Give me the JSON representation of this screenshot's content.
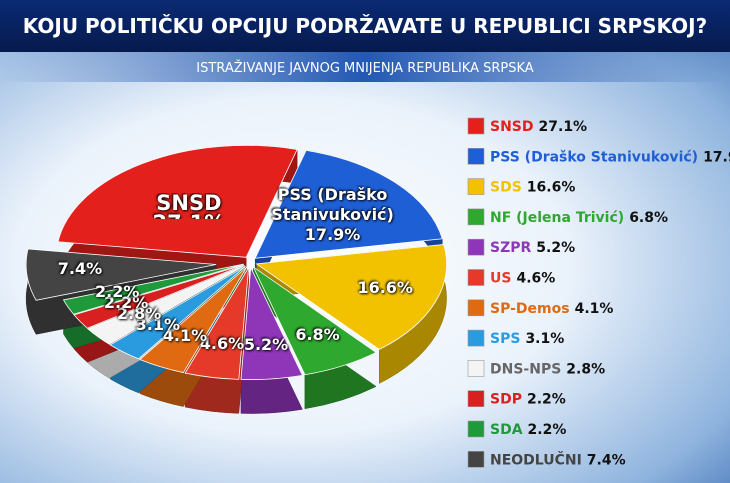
{
  "chart_data": {
    "type": "pie",
    "title": "KOJU POLITIČKU OPCIJU PODRŽAVATE U REPUBLICI SRPSKOJ?",
    "subtitle": "ISTRAŽIVANJE JAVNOG MNIJENJA REPUBLIKA SRPSKA",
    "series": [
      {
        "name": "SNSD",
        "color": "#e3201b"
      },
      {
        "name": "PSS (Draško Stanivuković)",
        "color": "#1f5fd6"
      },
      {
        "name": "SDS",
        "color": "#f2c200"
      },
      {
        "name": "NF (Jelena Trivić)",
        "color": "#2ea82e"
      },
      {
        "name": "SZPR",
        "color": "#8e35b8"
      },
      {
        "name": "US",
        "color": "#e53a2a"
      },
      {
        "name": "SP-Demos",
        "color": "#e06a12"
      },
      {
        "name": "SPS",
        "color": "#2b9be0"
      },
      {
        "name": "DNS-NPS",
        "color": "#f4f4f4"
      },
      {
        "name": "SDP",
        "color": "#d92020"
      },
      {
        "name": "SDA",
        "color": "#1f9a3a"
      },
      {
        "name": "NEODLUČNI",
        "color": "#444444"
      }
    ],
    "values": [
      27.1,
      17.9,
      16.6,
      6.8,
      5.2,
      4.6,
      4.1,
      3.1,
      2.8,
      2.2,
      2.2,
      7.4
    ],
    "value_labels": [
      "27.1%",
      "17.9%",
      "16.6%",
      "6.8%",
      "5.2%",
      "4.6%",
      "4.1%",
      "3.1%",
      "2.8%",
      "2.2%",
      "2.2%",
      "7.4%"
    ]
  }
}
